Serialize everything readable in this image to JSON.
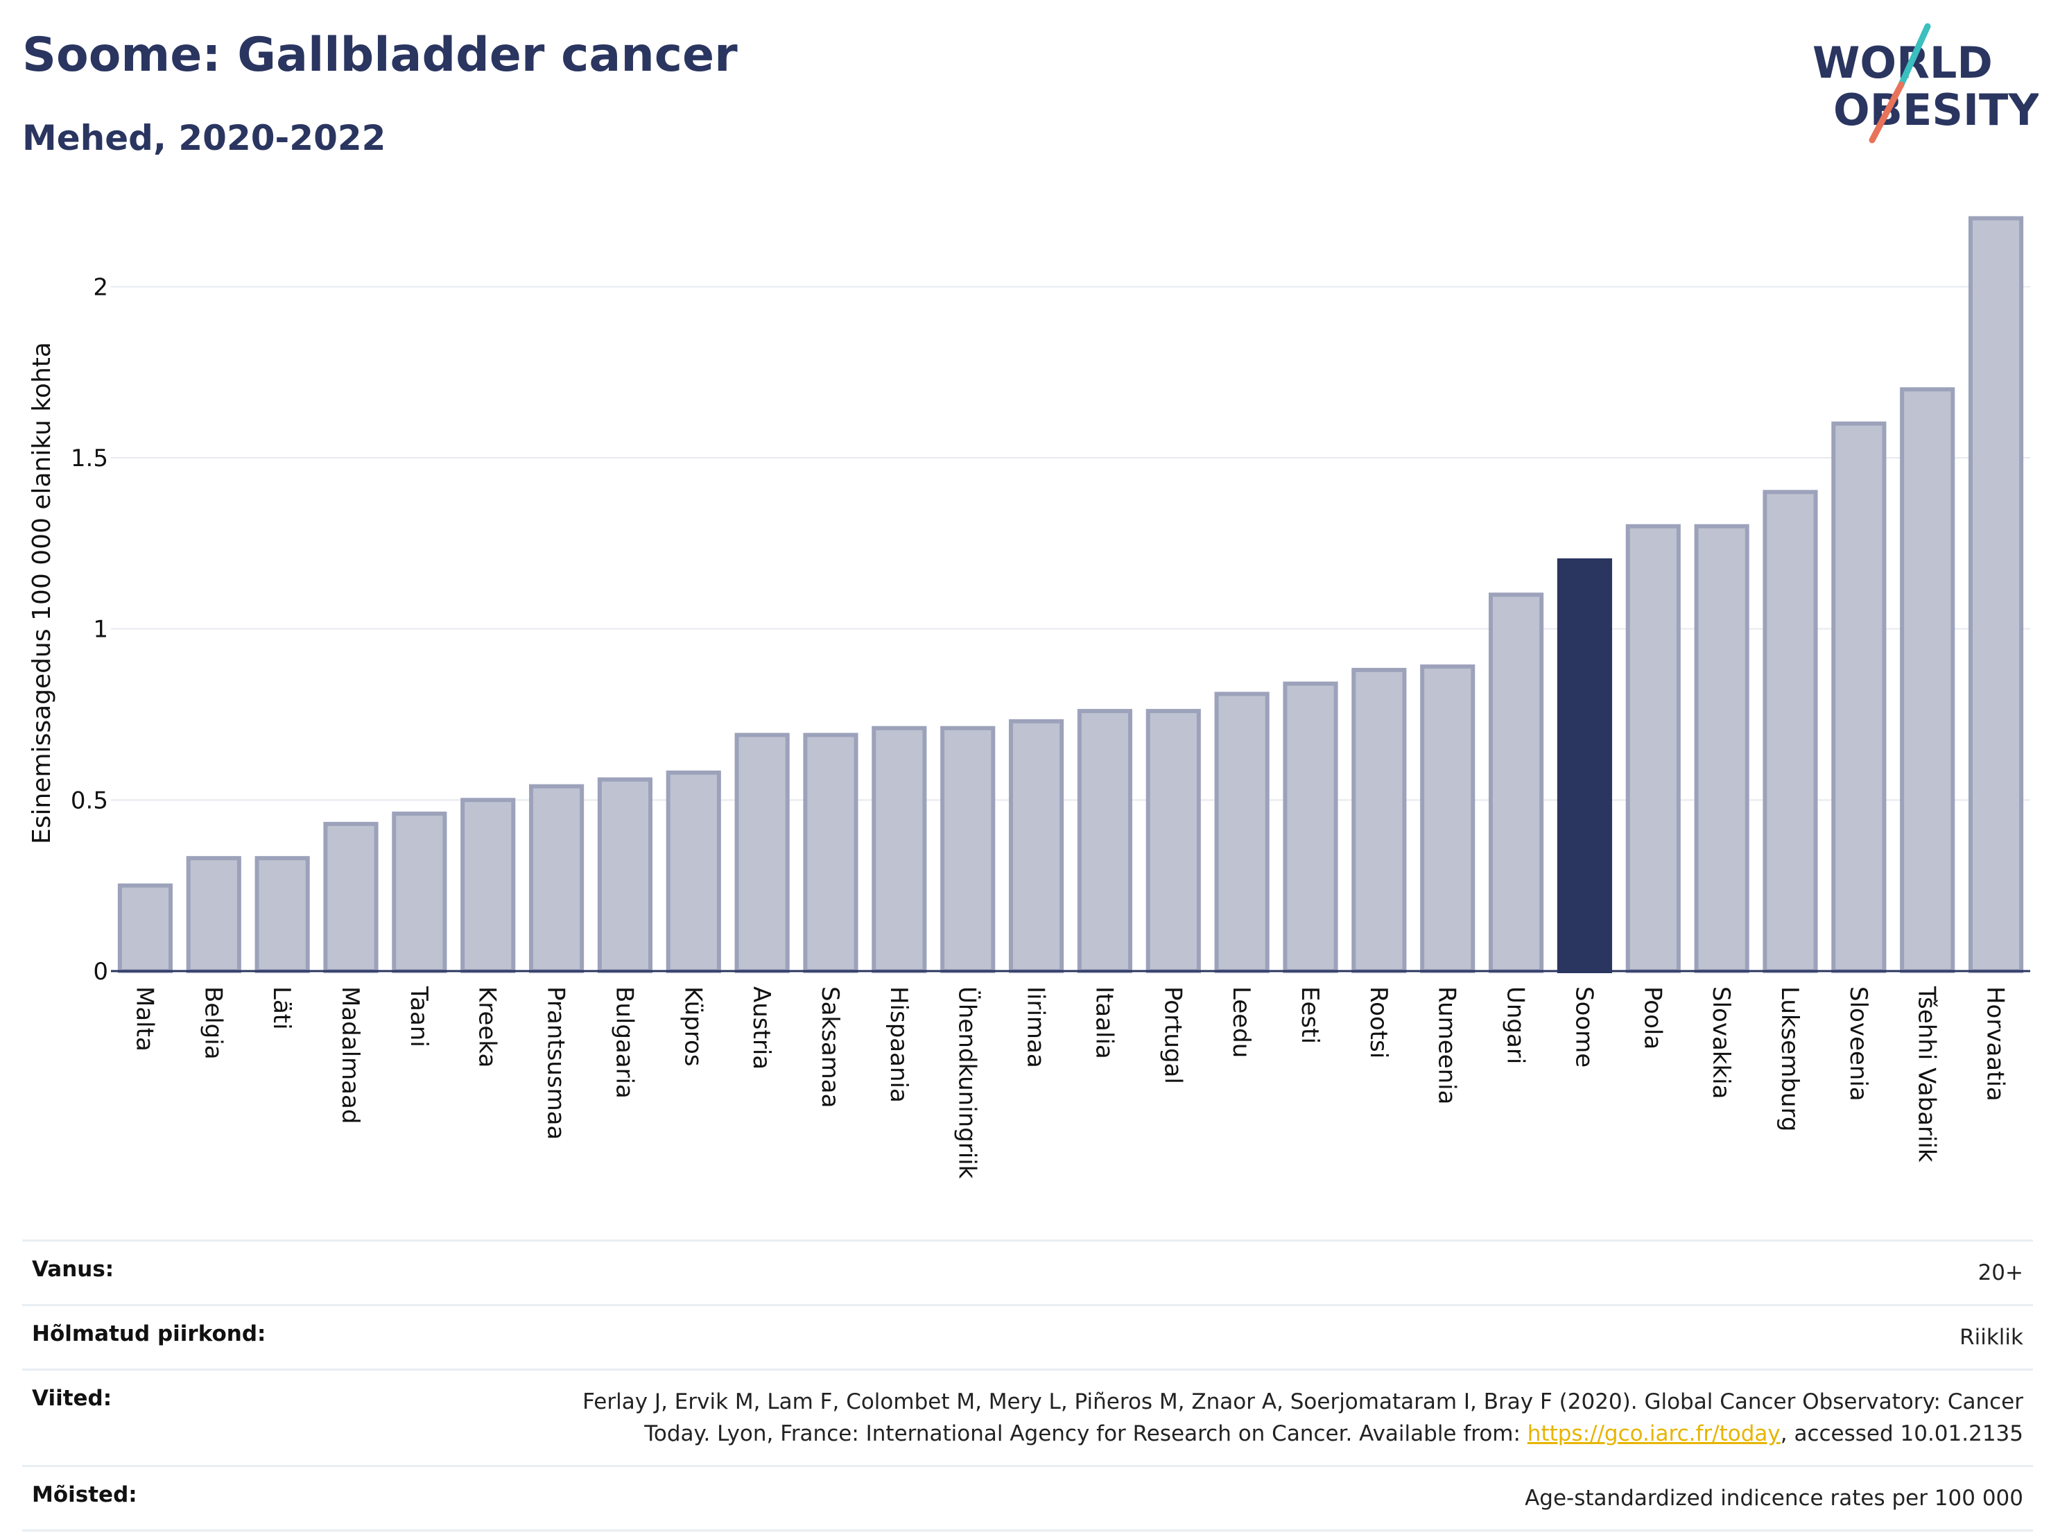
{
  "header": {
    "title": "Soome: Gallbladder cancer",
    "subtitle": "Mehed, 2020-2022"
  },
  "logo": {
    "line1": "WORLD",
    "line2": "OBESITY",
    "colors": {
      "text": "#2a3560",
      "slash_teal": "#3bbfbf",
      "slash_coral": "#e8735a"
    }
  },
  "chart_data": {
    "type": "bar",
    "ylabel": "Esinemissagedus 100 000 elaniku kohta",
    "xlabel": "",
    "ylim": [
      0,
      2.25
    ],
    "yticks": [
      0,
      0.5,
      1,
      1.5,
      2
    ],
    "ytick_labels": [
      "0",
      "0.5",
      "1",
      "1.5",
      "2"
    ],
    "grid": true,
    "categories": [
      "Malta",
      "Belgia",
      "Läti",
      "Madalmaad",
      "Taani",
      "Kreeka",
      "Prantsusmaa",
      "Bulgaaria",
      "Küpros",
      "Austria",
      "Saksamaa",
      "Hispaania",
      "Ühendkuningriik",
      "Iirimaa",
      "Itaalia",
      "Portugal",
      "Leedu",
      "Eesti",
      "Rootsi",
      "Rumeenia",
      "Ungari",
      "Soome",
      "Poola",
      "Slovakkia",
      "Luksemburg",
      "Sloveenia",
      "Tšehhi Vabariik",
      "Horvaatia"
    ],
    "values": [
      0.25,
      0.33,
      0.33,
      0.43,
      0.46,
      0.5,
      0.54,
      0.56,
      0.58,
      0.69,
      0.69,
      0.71,
      0.71,
      0.73,
      0.76,
      0.76,
      0.81,
      0.84,
      0.88,
      0.89,
      1.1,
      1.2,
      1.3,
      1.3,
      1.4,
      1.6,
      1.7,
      2.2
    ],
    "highlight": "Soome",
    "colors": {
      "bar": "#bfc3d1",
      "bar_border": "#9da2bb",
      "highlight": "#2a3560",
      "grid": "#e6e9ef",
      "axis": "#2a3560"
    }
  },
  "meta": [
    {
      "label": "Vanus:",
      "value": "20+"
    },
    {
      "label": "Hõlmatud piirkond:",
      "value": "Riiklik"
    },
    {
      "label": "Viited:",
      "value_line1": "Ferlay J, Ervik M, Lam F, Colombet M, Mery L, Piñeros M, Znaor A, Soerjomataram I, Bray F (2020). Global Cancer Observatory: Cancer",
      "value_line2_pre": "Today. Lyon, France: International Agency for Research on Cancer. Available from: ",
      "link": "https://gco.iarc.fr/today",
      "value_line2_post": ", accessed 10.01.2135"
    },
    {
      "label": "Mõisted:",
      "value": "Age-standardized indicence rates per 100 000"
    }
  ]
}
